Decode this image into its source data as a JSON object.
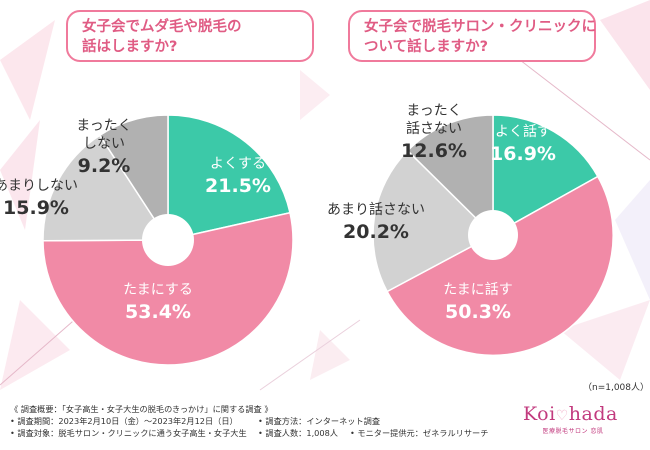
{
  "colors": {
    "accent": "#f07a9c",
    "teal": "#3cc9a8",
    "pink": "#f18aa6",
    "light_gray": "#d2d2d2",
    "gray": "#b1b1b1",
    "logo": "#c23a7e"
  },
  "questions": {
    "q1_line1": "女子会でムダ毛や脱毛の",
    "q1_line2": "話はしますか?",
    "q2_line1": "女子会で脱毛サロン・クリニックに",
    "q2_line2": "ついて話しますか?"
  },
  "chart_data": [
    {
      "type": "pie",
      "title": "女子会でムダ毛や脱毛の話はしますか?",
      "categories": [
        "よくする",
        "たまにする",
        "あまりしない",
        "まったくしない"
      ],
      "label_lines": [
        [
          "よくする"
        ],
        [
          "たまにする"
        ],
        [
          "あまりしない"
        ],
        [
          "まったく",
          "しない"
        ]
      ],
      "value_labels": [
        "21.5%",
        "53.4%",
        "15.9%",
        "9.2%"
      ],
      "values": [
        21.5,
        53.4,
        15.9,
        9.2
      ],
      "colors": [
        "#3cc9a8",
        "#f18aa6",
        "#d2d2d2",
        "#b1b1b1"
      ]
    },
    {
      "type": "pie",
      "title": "女子会で脱毛サロン・クリニックについて話しますか?",
      "categories": [
        "よく話す",
        "たまに話す",
        "あまり話さない",
        "まったく話さない"
      ],
      "label_lines": [
        [
          "よく話す"
        ],
        [
          "たまに話す"
        ],
        [
          "あまり話さない"
        ],
        [
          "まったく",
          "話さない"
        ]
      ],
      "value_labels": [
        "16.9%",
        "50.3%",
        "20.2%",
        "12.6%"
      ],
      "values": [
        16.9,
        50.3,
        20.2,
        12.6
      ],
      "colors": [
        "#3cc9a8",
        "#f18aa6",
        "#d2d2d2",
        "#b1b1b1"
      ]
    }
  ],
  "sample_note": "（n=1,008人）",
  "footer": {
    "overview": "《 調査概要：「女子高生・女子大生の脱毛のきっかけ」に関する調査 》",
    "period": "• 調査期間：2023年2月10日（金）〜2023年2月12日（日）",
    "method": "• 調査方法：インターネット調査",
    "target": "• 調査対象：脱毛サロン・クリニックに通う女子高生・女子大生",
    "count": "• 調査人数：1,008人",
    "provider": "• モニター提供元：ゼネラルリサーチ"
  },
  "logo": {
    "left": "Koi",
    "heart": "♡",
    "right": "hada",
    "sub": "医療脱毛サロン 恋肌"
  }
}
